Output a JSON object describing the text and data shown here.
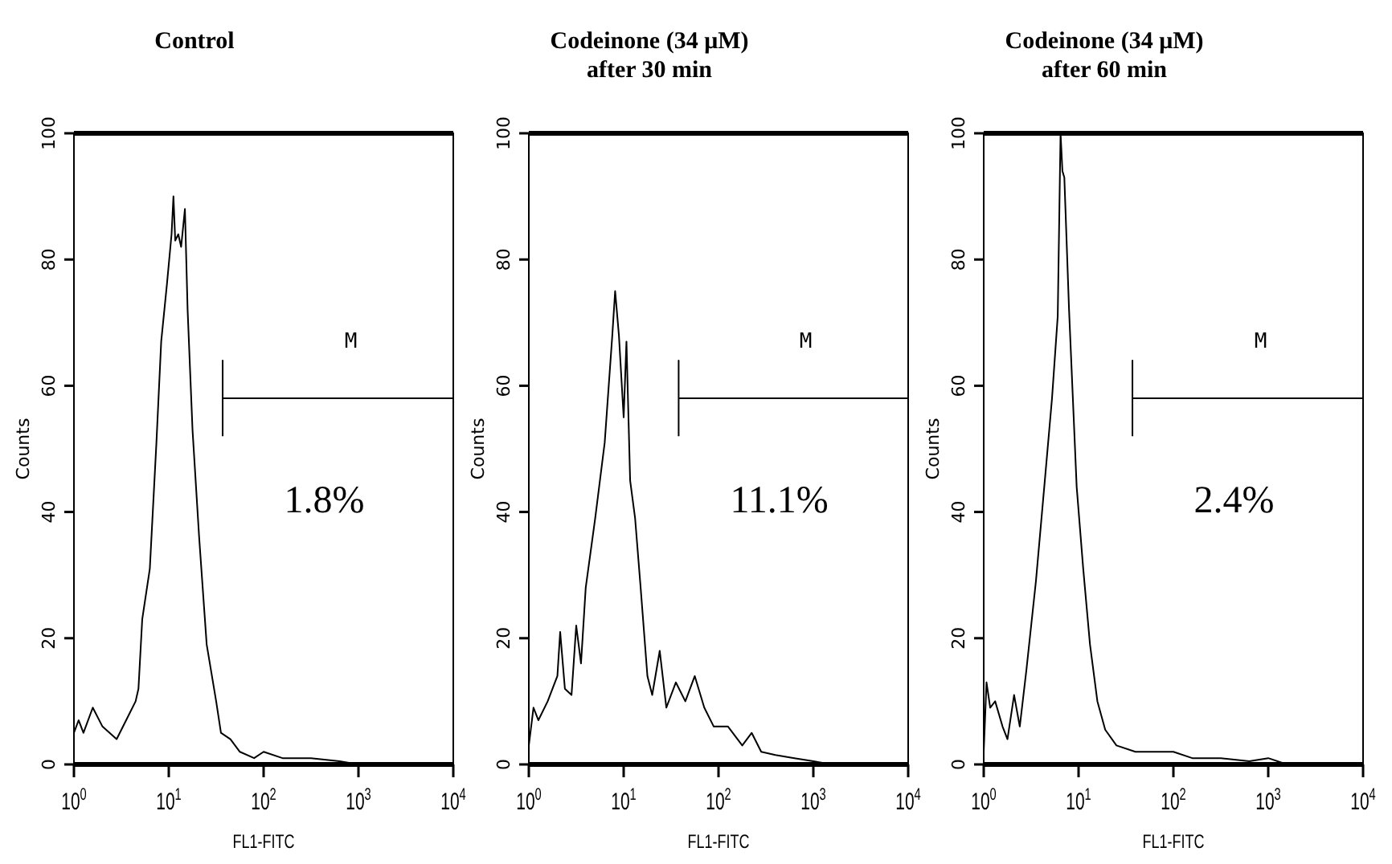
{
  "chart_data": [
    {
      "type": "line",
      "title": "Control",
      "xlabel": "FL1-FITC",
      "ylabel": "Counts",
      "log": "x",
      "xlim": [
        1,
        10000
      ],
      "ylim": [
        0,
        100
      ],
      "xticks": [
        {
          "value": 1,
          "label": "10$^{0}$"
        },
        {
          "value": 10,
          "label": "10$^{1}$"
        },
        {
          "value": 100,
          "label": "10$^{2}$"
        },
        {
          "value": 1000,
          "label": "10$^{3}$"
        },
        {
          "value": 10000,
          "label": "10$^{4}$"
        }
      ],
      "yticks": [
        0,
        20,
        40,
        60,
        80,
        100
      ],
      "annotations": [
        "1.8%",
        "M"
      ],
      "series": [
        {
          "color": "#000000",
          "x": [
            37,
            37,
            37,
            10000
          ],
          "values": [
            52,
            64,
            58,
            58
          ]
        },
        {
          "color": "#000000",
          "x": [
            1,
            1.12,
            1.26,
            1.58,
            2.0,
            2.82,
            3.55,
            4.47,
            4.79,
            5.25,
            6.31,
            7.41,
            8.32,
            9.55,
            10.7,
            11.2,
            11.7,
            12.6,
            13.5,
            14.8,
            15.8,
            17.8,
            20.9,
            25.1,
            31.6,
            35.5,
            44.7,
            56.2,
            79.4,
            100,
            158,
            316,
            631,
            1000,
            3160,
            10000
          ],
          "values": [
            5,
            7,
            5,
            9,
            6,
            4,
            7,
            10,
            12,
            23,
            31,
            51,
            67,
            76,
            84,
            90,
            83,
            84,
            82,
            88,
            72,
            53,
            36,
            19,
            10,
            5,
            4,
            2,
            1,
            2,
            1,
            1,
            0.5,
            0,
            0,
            0
          ]
        }
      ]
    },
    {
      "type": "line",
      "title": "Codeinone (34 μM)\nafter 30 min",
      "xlabel": "FL1-FITC",
      "ylabel": "Counts",
      "log": "x",
      "xlim": [
        1,
        10000
      ],
      "ylim": [
        0,
        100
      ],
      "xticks": [
        {
          "value": 1,
          "label": "10$^{0}$"
        },
        {
          "value": 10,
          "label": "10$^{1}$"
        },
        {
          "value": 100,
          "label": "10$^{2}$"
        },
        {
          "value": 1000,
          "label": "10$^{3}$"
        },
        {
          "value": 10000,
          "label": "10$^{4}$"
        }
      ],
      "yticks": [
        0,
        20,
        40,
        60,
        80,
        100
      ],
      "annotations": [
        "11.1%",
        "M"
      ],
      "series": [
        {
          "color": "#000000",
          "x": [
            38,
            38,
            38,
            10000
          ],
          "values": [
            52,
            64,
            58,
            58
          ]
        },
        {
          "color": "#000000",
          "x": [
            1,
            1.12,
            1.26,
            1.58,
            2.0,
            2.14,
            2.4,
            2.82,
            3.16,
            3.55,
            3.98,
            5.01,
            6.31,
            7.59,
            8.13,
            8.91,
            10,
            10.7,
            11.7,
            13.2,
            15.1,
            17.8,
            20,
            24,
            28.2,
            35.5,
            44.7,
            56.2,
            70.8,
            89.1,
            126,
            178,
            224,
            282,
            398,
            631,
            1000,
            1580,
            10000
          ],
          "values": [
            3,
            9,
            7,
            10,
            14,
            21,
            12,
            11,
            22,
            16,
            28,
            39,
            51,
            68,
            75,
            68,
            55,
            67,
            45,
            39,
            28,
            14,
            11,
            18,
            9,
            13,
            10,
            14,
            9,
            6,
            6,
            3,
            5,
            2,
            1.5,
            1,
            0.5,
            0,
            0
          ]
        }
      ]
    },
    {
      "type": "line",
      "title": "Codeinone (34 μM)\nafter 60 min",
      "xlabel": "FL1-FITC",
      "ylabel": "Counts",
      "log": "x",
      "xlim": [
        1,
        10000
      ],
      "ylim": [
        0,
        100
      ],
      "xticks": [
        {
          "value": 1,
          "label": "10$^{0}$"
        },
        {
          "value": 10,
          "label": "10$^{1}$"
        },
        {
          "value": 100,
          "label": "10$^{2}$"
        },
        {
          "value": 1000,
          "label": "10$^{3}$"
        },
        {
          "value": 10000,
          "label": "10$^{4}$"
        }
      ],
      "yticks": [
        0,
        20,
        40,
        60,
        80,
        100
      ],
      "annotations": [
        "2.4%",
        "M"
      ],
      "series": [
        {
          "color": "#000000",
          "x": [
            37,
            37,
            37,
            10000
          ],
          "values": [
            52,
            64,
            58,
            58
          ]
        },
        {
          "color": "#000000",
          "x": [
            1,
            1.07,
            1.17,
            1.32,
            1.58,
            1.78,
            2.09,
            2.4,
            2.82,
            3.55,
            4.47,
            5.25,
            6.03,
            6.46,
            6.76,
            7.08,
            7.94,
            9.55,
            11.2,
            13.2,
            15.8,
            19.1,
            25.1,
            39.8,
            63.1,
            100,
            158,
            316,
            631,
            1000,
            1580,
            10000
          ],
          "values": [
            2,
            13,
            9,
            10,
            6,
            4,
            11,
            6,
            15,
            29,
            46,
            58,
            71,
            100,
            94,
            93,
            72,
            44,
            31,
            19,
            10,
            5.5,
            3,
            2,
            2,
            2,
            1,
            1,
            0.5,
            1,
            0,
            0
          ]
        }
      ]
    }
  ]
}
